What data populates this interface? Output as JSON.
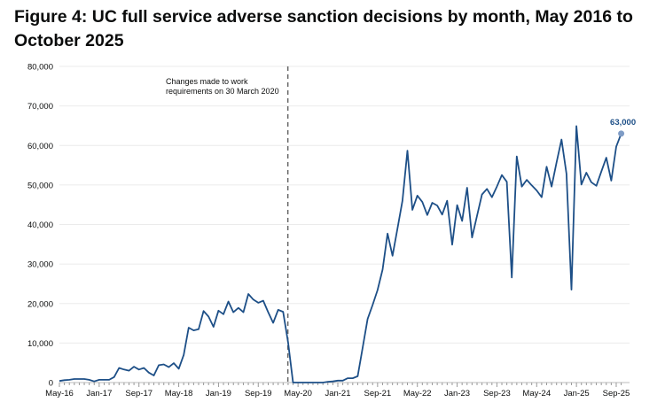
{
  "chart_data": {
    "type": "line",
    "title": "Figure 4: UC full service adverse sanction decisions by month, May 2016 to October 2025",
    "xlabel": "",
    "ylabel": "",
    "x_start": "May-16",
    "x_end": "Oct-25",
    "x_frequency": "monthly",
    "x_tick_labels": [
      "May-16",
      "Jan-17",
      "Sep-17",
      "May-18",
      "Jan-19",
      "Sep-19",
      "May-20",
      "Jan-21",
      "Sep-21",
      "May-22",
      "Jan-23",
      "Sep-23",
      "May-24",
      "Jan-25",
      "Sep-25"
    ],
    "ylim": [
      0,
      80000
    ],
    "y_tick_labels": [
      "0",
      "10,000",
      "20,000",
      "30,000",
      "40,000",
      "50,000",
      "60,000",
      "70,000",
      "80,000"
    ],
    "grid": "horizontal",
    "series": [
      {
        "color": "#1d4f87",
        "values": [
          400,
          600,
          700,
          900,
          900,
          900,
          700,
          300,
          700,
          700,
          700,
          1400,
          3700,
          3300,
          3000,
          4000,
          3300,
          3700,
          2500,
          1800,
          4400,
          4600,
          3900,
          4900,
          3500,
          7000,
          13900,
          13200,
          13500,
          18100,
          16700,
          14100,
          18200,
          17300,
          20500,
          17800,
          18900,
          17800,
          22400,
          21000,
          20200,
          20700,
          17800,
          15100,
          18400,
          17900,
          10200,
          0,
          0,
          0,
          0,
          0,
          0,
          0,
          200,
          300,
          500,
          500,
          1100,
          1100,
          1600,
          8800,
          16100,
          19600,
          23400,
          28600,
          37700,
          32100,
          39000,
          46000,
          58700,
          43700,
          47300,
          45700,
          42400,
          45500,
          44800,
          42500,
          46000,
          34900,
          44900,
          40900,
          49300,
          36700,
          42200,
          47600,
          49000,
          46900,
          49600,
          52500,
          50800,
          26600,
          57200,
          49600,
          51300,
          49900,
          48600,
          46900,
          54600,
          49600,
          55700,
          61500,
          52800,
          23500,
          64900,
          50100,
          53100,
          50700,
          49800,
          53400,
          56900,
          51100,
          59700,
          63000
        ]
      }
    ],
    "annotations": [
      {
        "text_line1": "Changes made to work",
        "text_line2": "requirements on 30 March 2020",
        "at": "30 March 2020",
        "style": "dashed vertical line"
      },
      {
        "text": "63,000",
        "at": "Oct-25",
        "marker_color": "#7f9cc6",
        "label_color": "#1d4f87"
      }
    ]
  }
}
